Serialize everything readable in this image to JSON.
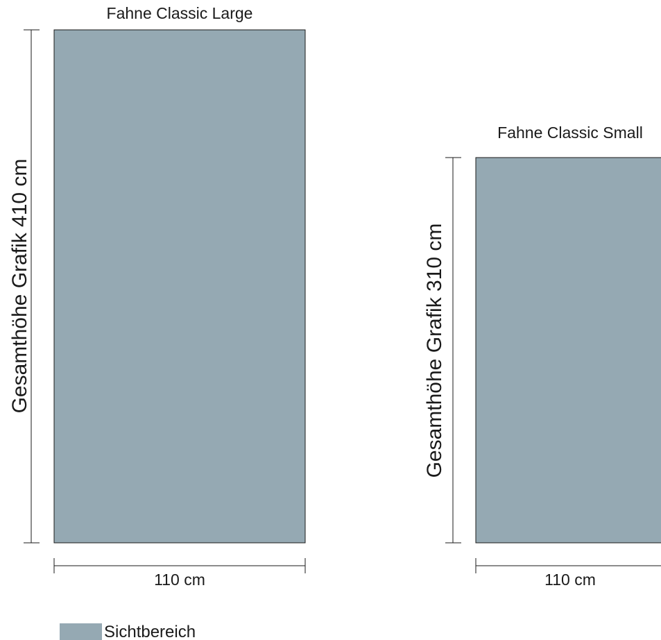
{
  "colors": {
    "sichtbereich_fill": "#95a9b3",
    "outline": "#1a1a1a",
    "dimension_line": "#1a1a1a"
  },
  "flag_large": {
    "title": "Fahne Classic Large",
    "height_label": "Gesamthöhe Grafik 410 cm",
    "width_label": "110 cm"
  },
  "flag_small": {
    "title": "Fahne Classic Small",
    "height_label": "Gesamthöhe Grafik 310 cm",
    "width_label": "110 cm"
  },
  "legend": {
    "label": "Sichtbereich"
  }
}
